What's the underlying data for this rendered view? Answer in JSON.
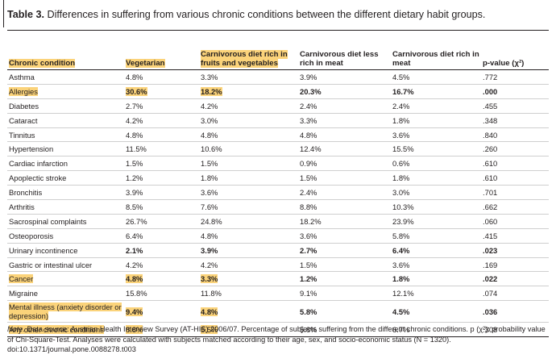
{
  "caption": {
    "label": "Table 3.",
    "text": "Differences in suffering from various chronic conditions between the different dietary habit groups."
  },
  "table": {
    "headers": [
      {
        "text": "Chronic condition",
        "hl": true
      },
      {
        "text": "Vegetarian",
        "hl": true
      },
      {
        "text": "Carnivorous diet rich in fruits and vegetables",
        "hl": true
      },
      {
        "text": "Carnivorous diet less rich in meat",
        "hl": false
      },
      {
        "text": "Carnivorous diet rich in meat",
        "hl": false
      },
      {
        "text": "p-value (χ²)",
        "hl": false
      }
    ],
    "rows": [
      {
        "cells": [
          "Asthma",
          "4.8%",
          "3.3%",
          "3.9%",
          "4.5%",
          ".772"
        ],
        "bold": false,
        "hl": [
          false,
          false,
          false
        ]
      },
      {
        "cells": [
          "Allergies",
          "30.6%",
          "18.2%",
          "20.3%",
          "16.7%",
          ".000"
        ],
        "bold": true,
        "hl": [
          true,
          true,
          true
        ]
      },
      {
        "cells": [
          "Diabetes",
          "2.7%",
          "4.2%",
          "2.4%",
          "2.4%",
          ".455"
        ],
        "bold": false,
        "hl": [
          false,
          false,
          false
        ]
      },
      {
        "cells": [
          "Cataract",
          "4.2%",
          "3.0%",
          "3.3%",
          "1.8%",
          ".348"
        ],
        "bold": false,
        "hl": [
          false,
          false,
          false
        ]
      },
      {
        "cells": [
          "Tinnitus",
          "4.8%",
          "4.8%",
          "4.8%",
          "3.6%",
          ".840"
        ],
        "bold": false,
        "hl": [
          false,
          false,
          false
        ]
      },
      {
        "cells": [
          "Hypertension",
          "11.5%",
          "10.6%",
          "12.4%",
          "15.5%",
          ".260"
        ],
        "bold": false,
        "hl": [
          false,
          false,
          false
        ]
      },
      {
        "cells": [
          "Cardiac infarction",
          "1.5%",
          "1.5%",
          "0.9%",
          "0.6%",
          ".610"
        ],
        "bold": false,
        "hl": [
          false,
          false,
          false
        ]
      },
      {
        "cells": [
          "Apoplectic stroke",
          "1.2%",
          "1.8%",
          "1.5%",
          "1.8%",
          ".610"
        ],
        "bold": false,
        "hl": [
          false,
          false,
          false
        ]
      },
      {
        "cells": [
          "Bronchitis",
          "3.9%",
          "3.6%",
          "2.4%",
          "3.0%",
          ".701"
        ],
        "bold": false,
        "hl": [
          false,
          false,
          false
        ]
      },
      {
        "cells": [
          "Arthritis",
          "8.5%",
          "7.6%",
          "8.8%",
          "10.3%",
          ".662"
        ],
        "bold": false,
        "hl": [
          false,
          false,
          false
        ]
      },
      {
        "cells": [
          "Sacrospinal complaints",
          "26.7%",
          "24.8%",
          "18.2%",
          "23.9%",
          ".060"
        ],
        "bold": false,
        "hl": [
          false,
          false,
          false
        ]
      },
      {
        "cells": [
          "Osteoporosis",
          "6.4%",
          "4.8%",
          "3.6%",
          "5.8%",
          ".415"
        ],
        "bold": false,
        "hl": [
          false,
          false,
          false
        ]
      },
      {
        "cells": [
          "Urinary incontinence",
          "2.1%",
          "3.9%",
          "2.7%",
          "6.4%",
          ".023"
        ],
        "bold": true,
        "hl": [
          false,
          false,
          false
        ]
      },
      {
        "cells": [
          "Gastric or intestinal ulcer",
          "4.2%",
          "4.2%",
          "1.5%",
          "3.6%",
          ".169"
        ],
        "bold": false,
        "hl": [
          false,
          false,
          false
        ]
      },
      {
        "cells": [
          "Cancer",
          "4.8%",
          "3.3%",
          "1.2%",
          "1.8%",
          ".022"
        ],
        "bold": true,
        "hl": [
          true,
          true,
          true
        ]
      },
      {
        "cells": [
          "Migraine",
          "15.8%",
          "11.8%",
          "9.1%",
          "12.1%",
          ".074"
        ],
        "bold": false,
        "hl": [
          false,
          false,
          false
        ]
      },
      {
        "cells": [
          "Mental illness (anxiety disorder or depression)",
          "9.4%",
          "4.8%",
          "5.8%",
          "4.5%",
          ".036"
        ],
        "bold": true,
        "hl": [
          true,
          true,
          true
        ],
        "tall": true
      },
      {
        "cells": [
          "Any other chronic conditions",
          "8.8%",
          "5.5%",
          "5.8%",
          "6.7%",
          ".308"
        ],
        "bold": false,
        "hl": [
          true,
          true,
          true
        ]
      }
    ]
  },
  "note": {
    "label": "Note.",
    "text": "Data source: Austrian Health Interview Survey (AT-HIS) 2006/07. Percentage of subjects suffering from the different chronic conditions. p (χ²): probability value of Chi-Square-Test. Analyses were calculated with subjects matched according to their age, sex, and socio-economic status (N = 1320).",
    "doi": "doi:10.1371/journal.pone.0088278.t003"
  },
  "colors": {
    "highlight": "#fbd37a",
    "text": "#231f20",
    "row_rule": "#cfcfcf"
  }
}
